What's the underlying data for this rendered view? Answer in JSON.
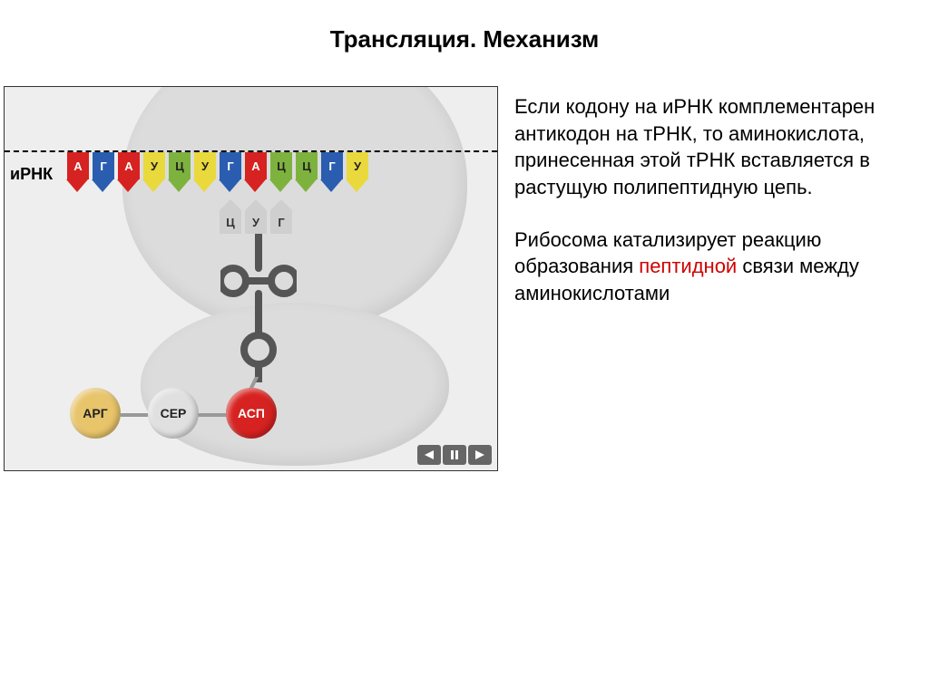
{
  "title": "Трансляция. Механизм",
  "mrna_label": "иРНК",
  "colors": {
    "background": "#ffffff",
    "diagram_bg": "#eeeeee",
    "ribosome": "#dcdcdc",
    "A": "#d62220",
    "G": "#2a5db0",
    "U": "#e9d93d",
    "C": "#7eb23f",
    "anticodon_fill": "#cfcfcf",
    "amino_arg": "#e8c46a",
    "amino_ser": "#e0e0e0",
    "amino_asp": "#d62220",
    "link": "#999999"
  },
  "codons": [
    {
      "b": "А",
      "c": "A"
    },
    {
      "b": "Г",
      "c": "G"
    },
    {
      "b": "А",
      "c": "A"
    },
    {
      "b": "У",
      "c": "U"
    },
    {
      "b": "Ц",
      "c": "C"
    },
    {
      "b": "У",
      "c": "U"
    },
    {
      "b": "Г",
      "c": "G"
    },
    {
      "b": "А",
      "c": "A"
    },
    {
      "b": "Ц",
      "c": "C"
    },
    {
      "b": "Ц",
      "c": "C"
    },
    {
      "b": "Г",
      "c": "G"
    },
    {
      "b": "У",
      "c": "U"
    }
  ],
  "anticodons": [
    {
      "b": "Ц",
      "c": "gray"
    },
    {
      "b": "У",
      "c": "gray"
    },
    {
      "b": "Г",
      "c": "gray"
    }
  ],
  "aminoacids": [
    {
      "label": "АРГ",
      "key": "arg"
    },
    {
      "label": "СЕР",
      "key": "ser"
    },
    {
      "label": "АСП",
      "key": "asp"
    }
  ],
  "paragraphs": {
    "p1": "Если кодону на иРНК комплементарен антикодон на тРНК, то аминокислота, принесенная этой тРНК вставляется в растущую полипептидную цепь.",
    "p2_a": "Рибосома катализирует реакцию образования ",
    "p2_highlight": "пептидной",
    "p2_b": " связи между аминокислотами"
  }
}
